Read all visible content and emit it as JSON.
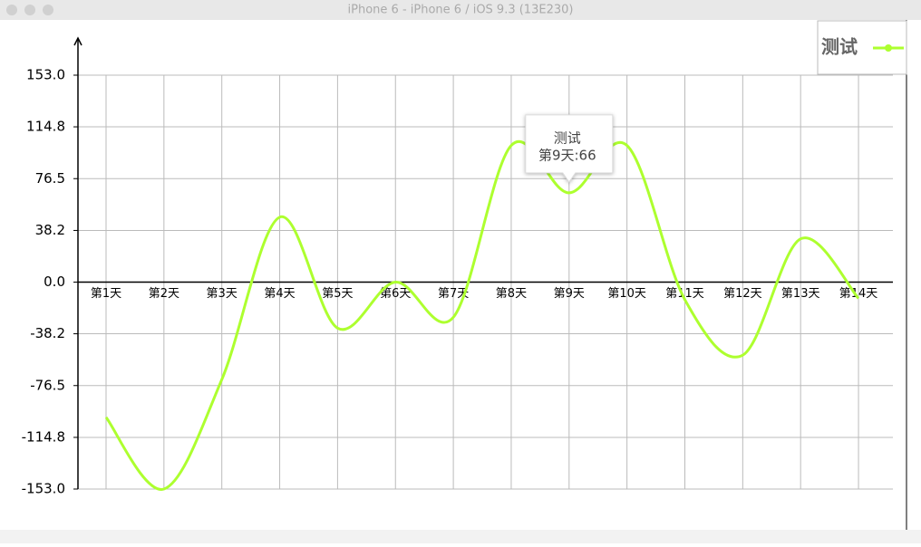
{
  "window_title": "iPhone 6 - iPhone 6 / iOS 9.3 (13E230)",
  "chart_data": {
    "type": "line",
    "categories": [
      "第1天",
      "第2天",
      "第3天",
      "第4天",
      "第5天",
      "第6天",
      "第7天",
      "第8天",
      "第9天",
      "第10天",
      "第11天",
      "第12天",
      "第13天",
      "第14天"
    ],
    "series": [
      {
        "name": "测试",
        "color": "#adff2f",
        "values": [
          -100,
          -153,
          -72,
          48,
          -34,
          0,
          -26,
          101,
          66,
          101,
          -13,
          -54,
          32,
          -12
        ]
      }
    ],
    "ylim": [
      -153,
      153
    ],
    "yticks": [
      {
        "value": -153,
        "label": "-153.0"
      },
      {
        "value": -114.8,
        "label": "-114.8"
      },
      {
        "value": -76.5,
        "label": "-76.5"
      },
      {
        "value": -38.2,
        "label": "-38.2"
      },
      {
        "value": 0,
        "label": "0.0"
      },
      {
        "value": 38.2,
        "label": "38.2"
      },
      {
        "value": 76.5,
        "label": "76.5"
      },
      {
        "value": 114.8,
        "label": "114.8"
      },
      {
        "value": 153,
        "label": "153.0"
      }
    ],
    "grid": true,
    "legend": "top-right",
    "tooltip": {
      "title": "测试",
      "text": "第9天:66"
    }
  }
}
